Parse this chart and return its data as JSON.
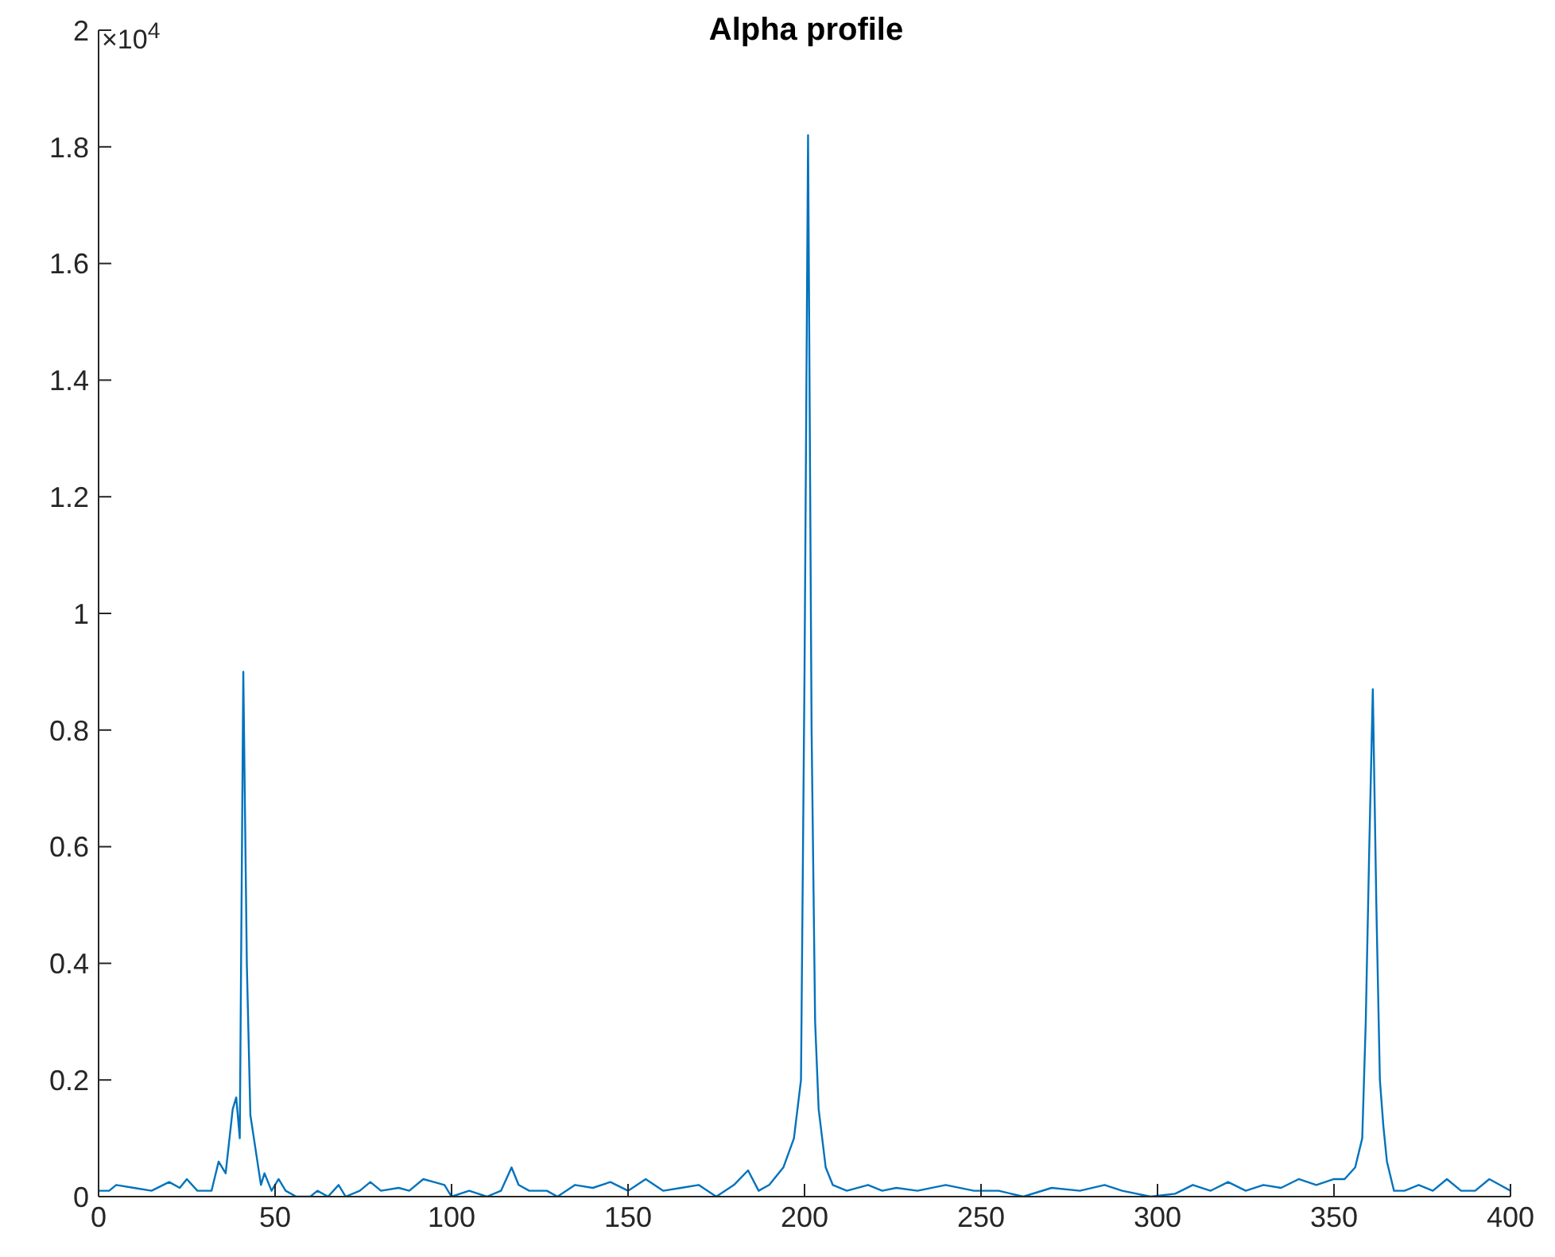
{
  "chart_data": {
    "type": "line",
    "title": "Alpha profile",
    "annotations": [
      "×10$^{4}$"
    ],
    "x": [
      0,
      3,
      5,
      10,
      15,
      20,
      23,
      25,
      28,
      32,
      34,
      36,
      38,
      39,
      40,
      41,
      42,
      43,
      44,
      46,
      47,
      49,
      51,
      53,
      56,
      60,
      62,
      65,
      68,
      70,
      74,
      77,
      80,
      85,
      88,
      92,
      95,
      98,
      100,
      105,
      110,
      114,
      117,
      119,
      122,
      127,
      130,
      135,
      140,
      145,
      150,
      155,
      160,
      165,
      170,
      175,
      180,
      184,
      187,
      190,
      194,
      197,
      199,
      200,
      201,
      202,
      203,
      204,
      205,
      206,
      208,
      212,
      218,
      222,
      226,
      232,
      240,
      248,
      255,
      262,
      270,
      278,
      285,
      290,
      298,
      305,
      310,
      315,
      320,
      325,
      330,
      335,
      340,
      345,
      350,
      353,
      356,
      358,
      359,
      360,
      361,
      362,
      363,
      364,
      365,
      367,
      370,
      374,
      378,
      382,
      386,
      390,
      394,
      397,
      400
    ],
    "series": [
      {
        "color": "#0072bd",
        "values": [
          0.01,
          0.01,
          0.02,
          0.015,
          0.01,
          0.025,
          0.015,
          0.03,
          0.01,
          0.01,
          0.06,
          0.04,
          0.15,
          0.17,
          0.1,
          0.9,
          0.4,
          0.14,
          0.1,
          0.02,
          0.04,
          0.01,
          0.03,
          0.01,
          0,
          0,
          0.01,
          0,
          0.02,
          0,
          0.01,
          0.025,
          0.01,
          0.015,
          0.01,
          0.03,
          0.025,
          0.02,
          0,
          0.01,
          0,
          0.01,
          0.05,
          0.02,
          0.01,
          0.01,
          0,
          0.02,
          0.015,
          0.025,
          0.01,
          0.03,
          0.01,
          0.015,
          0.02,
          0,
          0.02,
          0.045,
          0.01,
          0.02,
          0.05,
          0.1,
          0.2,
          0.9,
          1.82,
          0.8,
          0.3,
          0.15,
          0.1,
          0.05,
          0.02,
          0.01,
          0.02,
          0.01,
          0.015,
          0.01,
          0.02,
          0.01,
          0.01,
          0,
          0.015,
          0.01,
          0.02,
          0.01,
          0,
          0.005,
          0.02,
          0.01,
          0.025,
          0.01,
          0.02,
          0.015,
          0.03,
          0.02,
          0.03,
          0.03,
          0.05,
          0.1,
          0.3,
          0.6,
          0.87,
          0.5,
          0.2,
          0.12,
          0.06,
          0.01,
          0.01,
          0.02,
          0.01,
          0.03,
          0.01,
          0.01,
          0.03,
          0.02,
          0.01
        ]
      }
    ],
    "xlim": [
      0,
      400
    ],
    "xticks": [
      0,
      50,
      100,
      150,
      200,
      250,
      300,
      350,
      400
    ],
    "ylim": [
      0,
      2
    ],
    "yticks": [
      0,
      0.2,
      0.4,
      0.6,
      0.8,
      1,
      1.2,
      1.4,
      1.6,
      1.8,
      2
    ],
    "grid": false,
    "legend": false,
    "marker": "none",
    "line_style": "solid"
  }
}
